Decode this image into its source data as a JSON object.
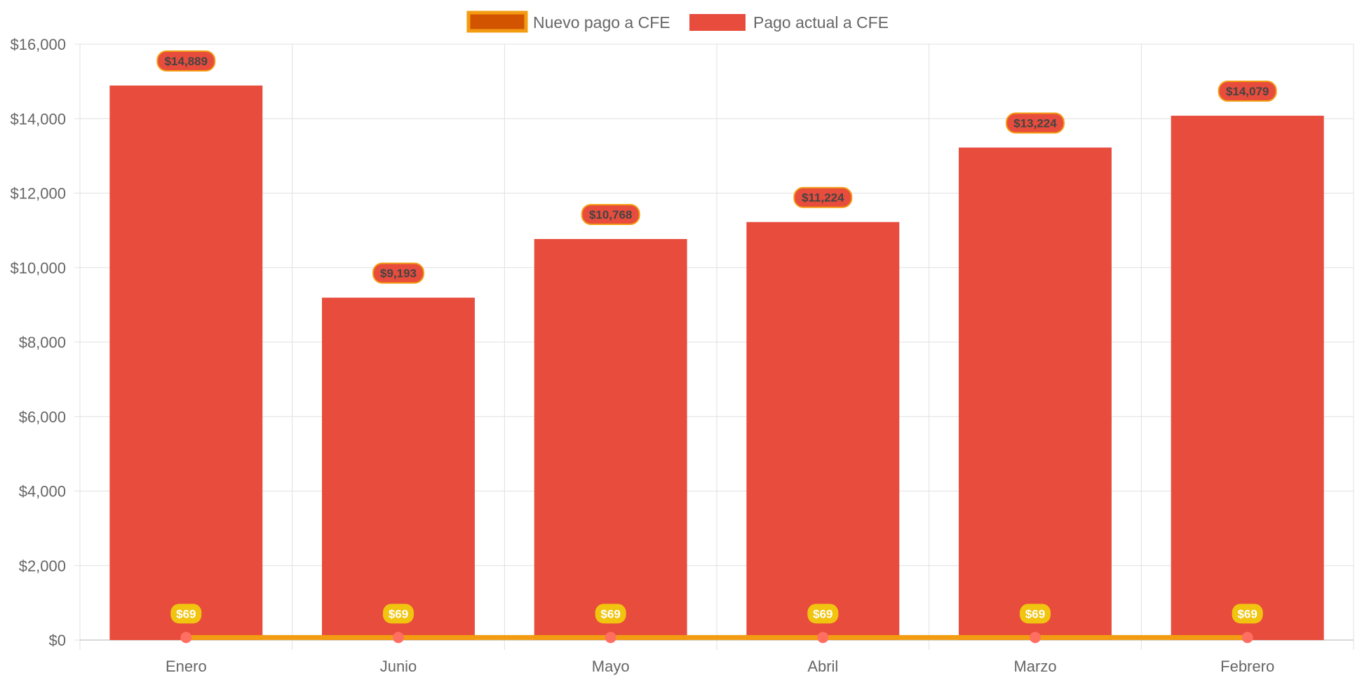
{
  "chart_data": {
    "type": "bar",
    "categories": [
      "Enero",
      "Junio",
      "Mayo",
      "Abril",
      "Marzo",
      "Febrero"
    ],
    "series": [
      {
        "name": "Nuevo pago a CFE",
        "type": "line",
        "values": [
          69,
          69,
          69,
          69,
          69,
          69
        ],
        "labels": [
          "$69",
          "$69",
          "$69",
          "$69",
          "$69",
          "$69"
        ],
        "color": "#f39c12",
        "fill_color": "#d35400",
        "point_color": "#ff6f61"
      },
      {
        "name": "Pago actual a CFE",
        "type": "bar",
        "values": [
          14889,
          9193,
          10768,
          11224,
          13224,
          14079
        ],
        "labels": [
          "$14,889",
          "$9,193",
          "$10,768",
          "$11,224",
          "$13,224",
          "$14,079"
        ],
        "color": "#e74c3c"
      }
    ],
    "ylim": [
      0,
      16000
    ],
    "yticks": [
      0,
      2000,
      4000,
      6000,
      8000,
      10000,
      12000,
      14000,
      16000
    ],
    "ytick_labels": [
      "$0",
      "$2,000",
      "$4,000",
      "$6,000",
      "$8,000",
      "$10,000",
      "$12,000",
      "$14,000",
      "$16,000"
    ],
    "grid": true,
    "legend_position": "top",
    "label_badge_color": "#f1c40f",
    "bar_label_border_color": "#f39c12",
    "grid_color": "#e0e0e0"
  }
}
